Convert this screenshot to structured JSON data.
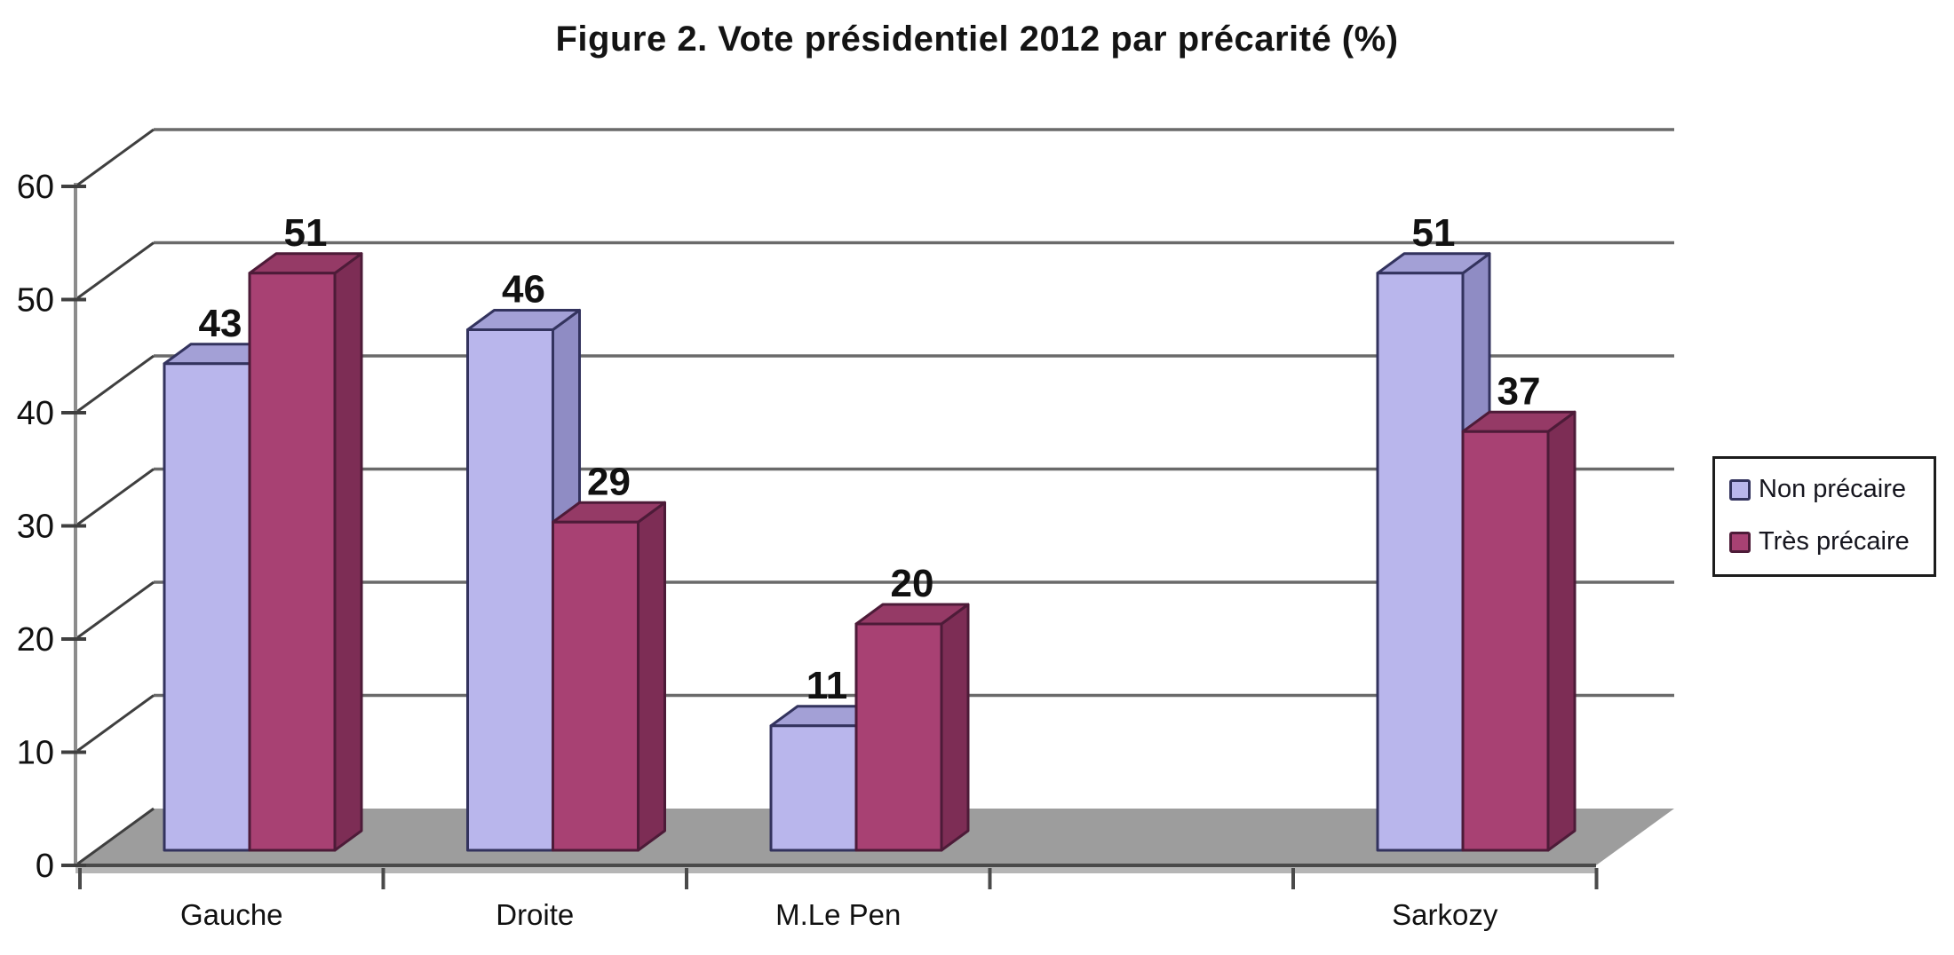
{
  "chart_data": {
    "type": "bar",
    "projection": "3d-column",
    "title": "Figure 2. Vote présidentiel 2012 par précarité (%)",
    "categories": [
      "Gauche",
      "Droite",
      "M.Le Pen",
      "Sarkozy"
    ],
    "series": [
      {
        "name": "Non précaire",
        "values": [
          43,
          46,
          11,
          51
        ],
        "color": {
          "front": "#b9b6ec",
          "top": "#a3a0d6",
          "side": "#8f8cc4",
          "edge": "#33335e"
        }
      },
      {
        "name": "Très précaire",
        "values": [
          51,
          29,
          20,
          37
        ],
        "color": {
          "front": "#a84173",
          "top": "#953a66",
          "side": "#7d2d55",
          "edge": "#4d1b38"
        }
      }
    ],
    "xlabel": "",
    "ylabel": "",
    "y_axis": {
      "min": 0,
      "max": 60,
      "step": 10
    },
    "grid": true,
    "data_labels": true,
    "legend_position": "right",
    "layout_hints": {
      "category_slot_indices": [
        0,
        1,
        2,
        4
      ],
      "total_slots": 5,
      "empty_slot": 3
    },
    "colors": {
      "floor": "#9d9d9d",
      "floor_front": "#b5b5b5",
      "grid": "#6a6a6a",
      "axis": "#8c8c8c",
      "tick": "#3f3f3f",
      "axis_front": "#4a4a4a",
      "text": "#111111"
    }
  }
}
